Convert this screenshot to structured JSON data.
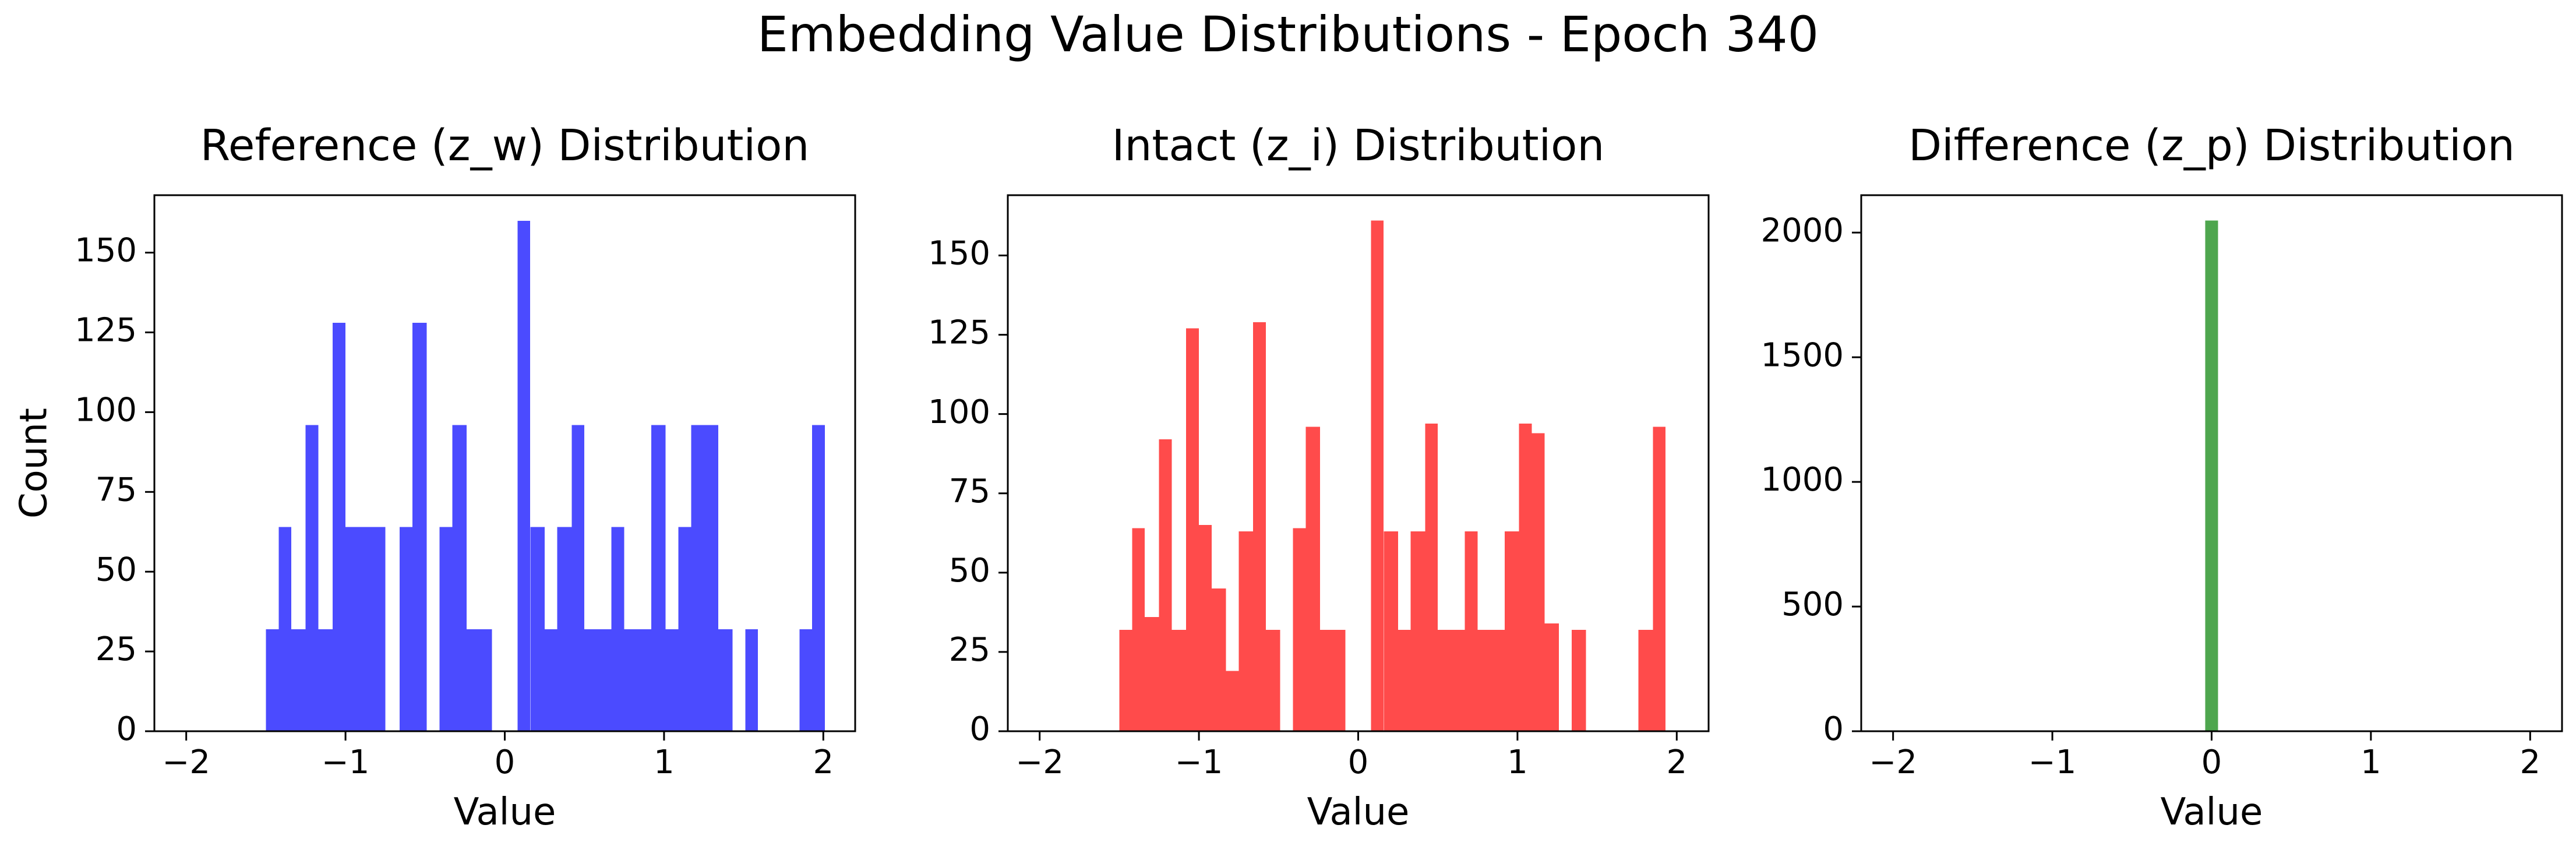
{
  "figure": {
    "suptitle": "Embedding Value Distributions - Epoch 340"
  },
  "chart_data": [
    {
      "type": "histogram",
      "title": "Reference (z_w) Distribution",
      "xlabel": "Value",
      "ylabel": "Count",
      "color": "#4b4bff",
      "xlim": [
        -2.2,
        2.2
      ],
      "ylim": [
        0,
        168
      ],
      "xticks": [
        -2,
        -1,
        0,
        1,
        2
      ],
      "yticks": [
        0,
        25,
        50,
        75,
        100,
        125,
        150
      ],
      "bins": [
        {
          "x0": -1.5,
          "x1": -1.42,
          "count": 32
        },
        {
          "x0": -1.42,
          "x1": -1.34,
          "count": 64
        },
        {
          "x0": -1.34,
          "x1": -1.25,
          "count": 32
        },
        {
          "x0": -1.25,
          "x1": -1.17,
          "count": 96
        },
        {
          "x0": -1.17,
          "x1": -1.08,
          "count": 32
        },
        {
          "x0": -1.08,
          "x1": -1.0,
          "count": 128
        },
        {
          "x0": -1.0,
          "x1": -0.92,
          "count": 64
        },
        {
          "x0": -0.92,
          "x1": -0.83,
          "count": 64
        },
        {
          "x0": -0.83,
          "x1": -0.75,
          "count": 64
        },
        {
          "x0": -0.66,
          "x1": -0.58,
          "count": 64
        },
        {
          "x0": -0.58,
          "x1": -0.49,
          "count": 128
        },
        {
          "x0": -0.41,
          "x1": -0.33,
          "count": 64
        },
        {
          "x0": -0.33,
          "x1": -0.24,
          "count": 96
        },
        {
          "x0": -0.24,
          "x1": -0.16,
          "count": 32
        },
        {
          "x0": -0.16,
          "x1": -0.08,
          "count": 32
        },
        {
          "x0": 0.08,
          "x1": 0.16,
          "count": 160
        },
        {
          "x0": 0.16,
          "x1": 0.25,
          "count": 64
        },
        {
          "x0": 0.25,
          "x1": 0.33,
          "count": 32
        },
        {
          "x0": 0.33,
          "x1": 0.42,
          "count": 64
        },
        {
          "x0": 0.42,
          "x1": 0.5,
          "count": 96
        },
        {
          "x0": 0.5,
          "x1": 0.58,
          "count": 32
        },
        {
          "x0": 0.58,
          "x1": 0.67,
          "count": 32
        },
        {
          "x0": 0.67,
          "x1": 0.75,
          "count": 64
        },
        {
          "x0": 0.75,
          "x1": 0.84,
          "count": 32
        },
        {
          "x0": 0.84,
          "x1": 0.92,
          "count": 32
        },
        {
          "x0": 0.92,
          "x1": 1.01,
          "count": 96
        },
        {
          "x0": 1.01,
          "x1": 1.09,
          "count": 32
        },
        {
          "x0": 1.09,
          "x1": 1.17,
          "count": 64
        },
        {
          "x0": 1.17,
          "x1": 1.26,
          "count": 96
        },
        {
          "x0": 1.26,
          "x1": 1.34,
          "count": 96
        },
        {
          "x0": 1.34,
          "x1": 1.43,
          "count": 32
        },
        {
          "x0": 1.51,
          "x1": 1.59,
          "count": 32
        },
        {
          "x0": 1.85,
          "x1": 1.93,
          "count": 32
        },
        {
          "x0": 1.93,
          "x1": 2.01,
          "count": 96
        }
      ]
    },
    {
      "type": "histogram",
      "title": "Intact (z_i) Distribution",
      "xlabel": "Value",
      "ylabel": "",
      "color": "#ff4b4b",
      "xlim": [
        -2.2,
        2.2
      ],
      "ylim": [
        0,
        169
      ],
      "xticks": [
        -2,
        -1,
        0,
        1,
        2
      ],
      "yticks": [
        0,
        25,
        50,
        75,
        100,
        125,
        150
      ],
      "bins": [
        {
          "x0": -1.5,
          "x1": -1.42,
          "count": 32
        },
        {
          "x0": -1.42,
          "x1": -1.34,
          "count": 64
        },
        {
          "x0": -1.34,
          "x1": -1.25,
          "count": 36
        },
        {
          "x0": -1.25,
          "x1": -1.17,
          "count": 92
        },
        {
          "x0": -1.17,
          "x1": -1.08,
          "count": 32
        },
        {
          "x0": -1.08,
          "x1": -1.0,
          "count": 127
        },
        {
          "x0": -1.0,
          "x1": -0.92,
          "count": 65
        },
        {
          "x0": -0.92,
          "x1": -0.83,
          "count": 45
        },
        {
          "x0": -0.83,
          "x1": -0.75,
          "count": 19
        },
        {
          "x0": -0.75,
          "x1": -0.66,
          "count": 63
        },
        {
          "x0": -0.66,
          "x1": -0.58,
          "count": 129
        },
        {
          "x0": -0.58,
          "x1": -0.49,
          "count": 32
        },
        {
          "x0": -0.41,
          "x1": -0.33,
          "count": 64
        },
        {
          "x0": -0.33,
          "x1": -0.24,
          "count": 96
        },
        {
          "x0": -0.24,
          "x1": -0.16,
          "count": 32
        },
        {
          "x0": -0.16,
          "x1": -0.08,
          "count": 32
        },
        {
          "x0": 0.08,
          "x1": 0.16,
          "count": 161
        },
        {
          "x0": 0.16,
          "x1": 0.25,
          "count": 63
        },
        {
          "x0": 0.25,
          "x1": 0.33,
          "count": 32
        },
        {
          "x0": 0.33,
          "x1": 0.42,
          "count": 63
        },
        {
          "x0": 0.42,
          "x1": 0.5,
          "count": 97
        },
        {
          "x0": 0.5,
          "x1": 0.58,
          "count": 32
        },
        {
          "x0": 0.58,
          "x1": 0.67,
          "count": 32
        },
        {
          "x0": 0.67,
          "x1": 0.75,
          "count": 63
        },
        {
          "x0": 0.75,
          "x1": 0.84,
          "count": 32
        },
        {
          "x0": 0.84,
          "x1": 0.92,
          "count": 32
        },
        {
          "x0": 0.92,
          "x1": 1.01,
          "count": 63
        },
        {
          "x0": 1.01,
          "x1": 1.09,
          "count": 97
        },
        {
          "x0": 1.09,
          "x1": 1.17,
          "count": 94
        },
        {
          "x0": 1.17,
          "x1": 1.26,
          "count": 34
        },
        {
          "x0": 1.34,
          "x1": 1.43,
          "count": 32
        },
        {
          "x0": 1.43,
          "x1": 1.51,
          "count": 0
        },
        {
          "x0": 1.76,
          "x1": 1.85,
          "count": 32
        },
        {
          "x0": 1.85,
          "x1": 1.93,
          "count": 96
        }
      ]
    },
    {
      "type": "histogram",
      "title": "Difference (z_p) Distribution",
      "xlabel": "Value",
      "ylabel": "",
      "color": "#4ea64e",
      "xlim": [
        -2.2,
        2.2
      ],
      "ylim": [
        0,
        2150
      ],
      "xticks": [
        -2,
        -1,
        0,
        1,
        2
      ],
      "yticks": [
        0,
        500,
        1000,
        1500,
        2000
      ],
      "bins": [
        {
          "x0": -0.04,
          "x1": 0.04,
          "count": 2048
        }
      ]
    }
  ]
}
